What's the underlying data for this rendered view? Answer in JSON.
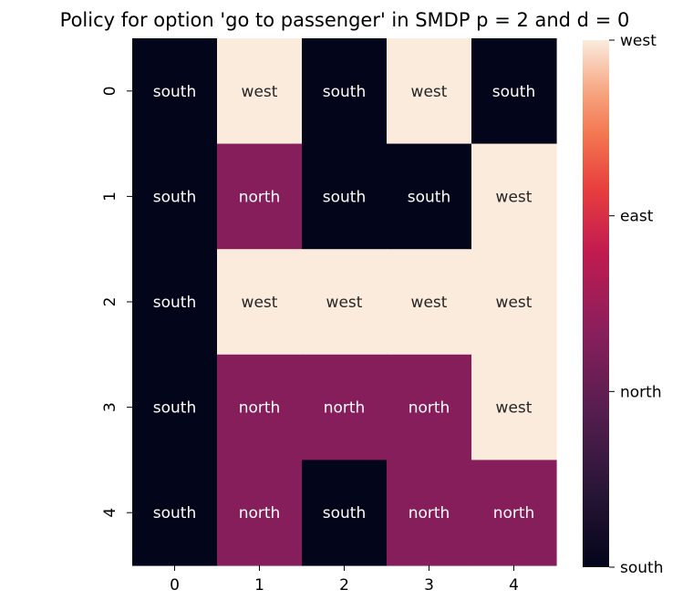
{
  "chart_data": {
    "type": "heatmap",
    "title": "Policy for option 'go to passenger' in SMDP p = 2 and d = 0",
    "x_categories": [
      "0",
      "1",
      "2",
      "3",
      "4"
    ],
    "y_categories": [
      "0",
      "1",
      "2",
      "3",
      "4"
    ],
    "values": [
      [
        "south",
        "west",
        "south",
        "west",
        "south"
      ],
      [
        "south",
        "north",
        "south",
        "south",
        "west"
      ],
      [
        "south",
        "west",
        "west",
        "west",
        "west"
      ],
      [
        "south",
        "north",
        "north",
        "north",
        "west"
      ],
      [
        "south",
        "north",
        "south",
        "north",
        "north"
      ]
    ],
    "colorbar": {
      "labels": [
        "west",
        "east",
        "north",
        "south"
      ]
    },
    "colors": {
      "south": "#03051a",
      "north": "#861e5b",
      "east": "#ee5a3a",
      "west": "#faebdd"
    },
    "text_colors": {
      "south": "#ffffff",
      "north": "#ffffff",
      "east": "#262626",
      "west": "#262626"
    }
  }
}
